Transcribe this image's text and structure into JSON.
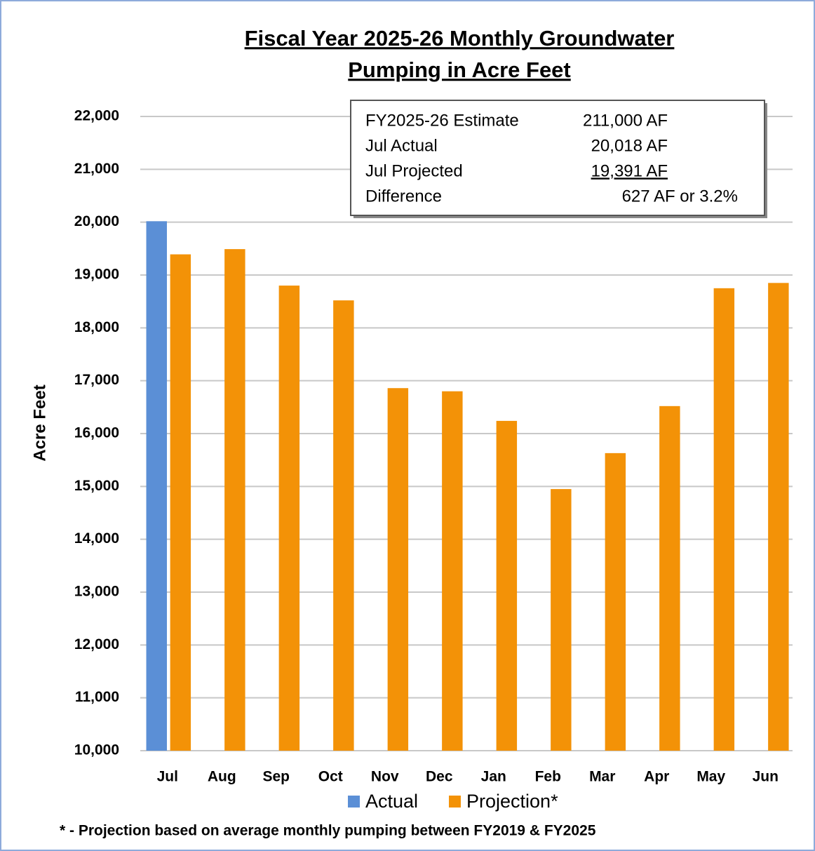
{
  "chart_data": {
    "type": "bar",
    "title": [
      "Fiscal Year 2025-26 Monthly Groundwater",
      "Pumping in Acre Feet"
    ],
    "ylabel": "Acre Feet",
    "categories": [
      "Jul",
      "Aug",
      "Sep",
      "Oct",
      "Nov",
      "Dec",
      "Jan",
      "Feb",
      "Mar",
      "Apr",
      "May",
      "Jun"
    ],
    "series": [
      {
        "name": "Actual",
        "color": "#5b8fd6",
        "values": [
          20018,
          null,
          null,
          null,
          null,
          null,
          null,
          null,
          null,
          null,
          null,
          null
        ]
      },
      {
        "name": "Projection*",
        "color": "#f39207",
        "values": [
          19391,
          19490,
          18800,
          18520,
          16860,
          16800,
          16240,
          14950,
          15630,
          16520,
          18750,
          18850
        ]
      }
    ],
    "ylim": [
      10000,
      22000
    ],
    "yticks": [
      {
        "value": 10000,
        "label": "10,000"
      },
      {
        "value": 11000,
        "label": "11,000"
      },
      {
        "value": 12000,
        "label": "12,000"
      },
      {
        "value": 13000,
        "label": "13,000"
      },
      {
        "value": 14000,
        "label": "14,000"
      },
      {
        "value": 15000,
        "label": "15,000"
      },
      {
        "value": 16000,
        "label": "16,000"
      },
      {
        "value": 17000,
        "label": "17,000"
      },
      {
        "value": 18000,
        "label": "18,000"
      },
      {
        "value": 19000,
        "label": "19,000"
      },
      {
        "value": 20000,
        "label": "20,000"
      },
      {
        "value": 21000,
        "label": "21,000"
      },
      {
        "value": 22000,
        "label": "22,000"
      }
    ],
    "grid": true,
    "legend": "bottom",
    "annotations": [
      [
        "FY2025-26 Estimate",
        "211,000 AF"
      ],
      [
        "Jul Actual",
        "20,018 AF"
      ],
      [
        "Jul Projected",
        "19,391 AF"
      ],
      [
        "Difference",
        "627 AF or 3.2%"
      ]
    ],
    "note": "* - Projection based on average monthly pumping between FY2019 & FY2025"
  }
}
